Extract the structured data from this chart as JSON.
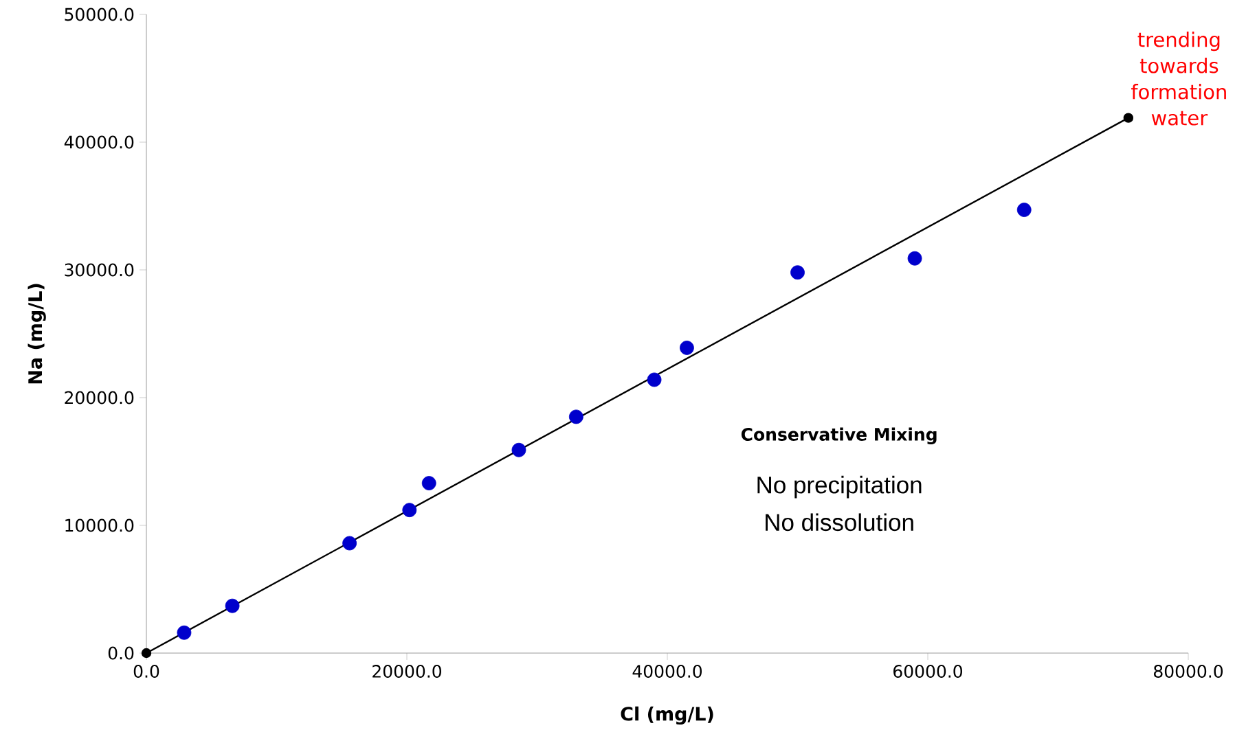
{
  "chart_data": {
    "type": "scatter",
    "xlabel": "Cl (mg/L)",
    "ylabel": "Na (mg/L)",
    "xlim": [
      0,
      80000
    ],
    "ylim": [
      0,
      50000
    ],
    "xticks": [
      {
        "value": 0,
        "label": "0.0"
      },
      {
        "value": 20000,
        "label": "20000.0"
      },
      {
        "value": 40000,
        "label": "40000.0"
      },
      {
        "value": 60000,
        "label": "60000.0"
      },
      {
        "value": 80000,
        "label": "80000.0"
      }
    ],
    "yticks": [
      {
        "value": 0,
        "label": "0.0"
      },
      {
        "value": 10000,
        "label": "10000.0"
      },
      {
        "value": 20000,
        "label": "20000.0"
      },
      {
        "value": 30000,
        "label": "30000.0"
      },
      {
        "value": 40000,
        "label": "40000.0"
      },
      {
        "value": 50000,
        "label": "50000.0"
      }
    ],
    "grid": false,
    "marker": "circle",
    "series": [
      {
        "type": "line",
        "color": "#000000",
        "x": [
          0,
          75400
        ],
        "values": [
          0,
          41900
        ]
      },
      {
        "color": "#0000cc",
        "x": [
          2900,
          6600,
          15600,
          20200,
          21700,
          28600,
          33000,
          39000,
          41500,
          50000,
          59000,
          67400
        ],
        "values": [
          1600,
          3700,
          8600,
          11200,
          13300,
          15900,
          18500,
          21400,
          23900,
          29800,
          30900,
          34700
        ]
      }
    ],
    "annotations": [
      {
        "text": "trending towards formation water",
        "x": 75400,
        "y": 41900
      },
      "Conservative Mixing",
      "No precipitation",
      "No dissolution"
    ]
  }
}
